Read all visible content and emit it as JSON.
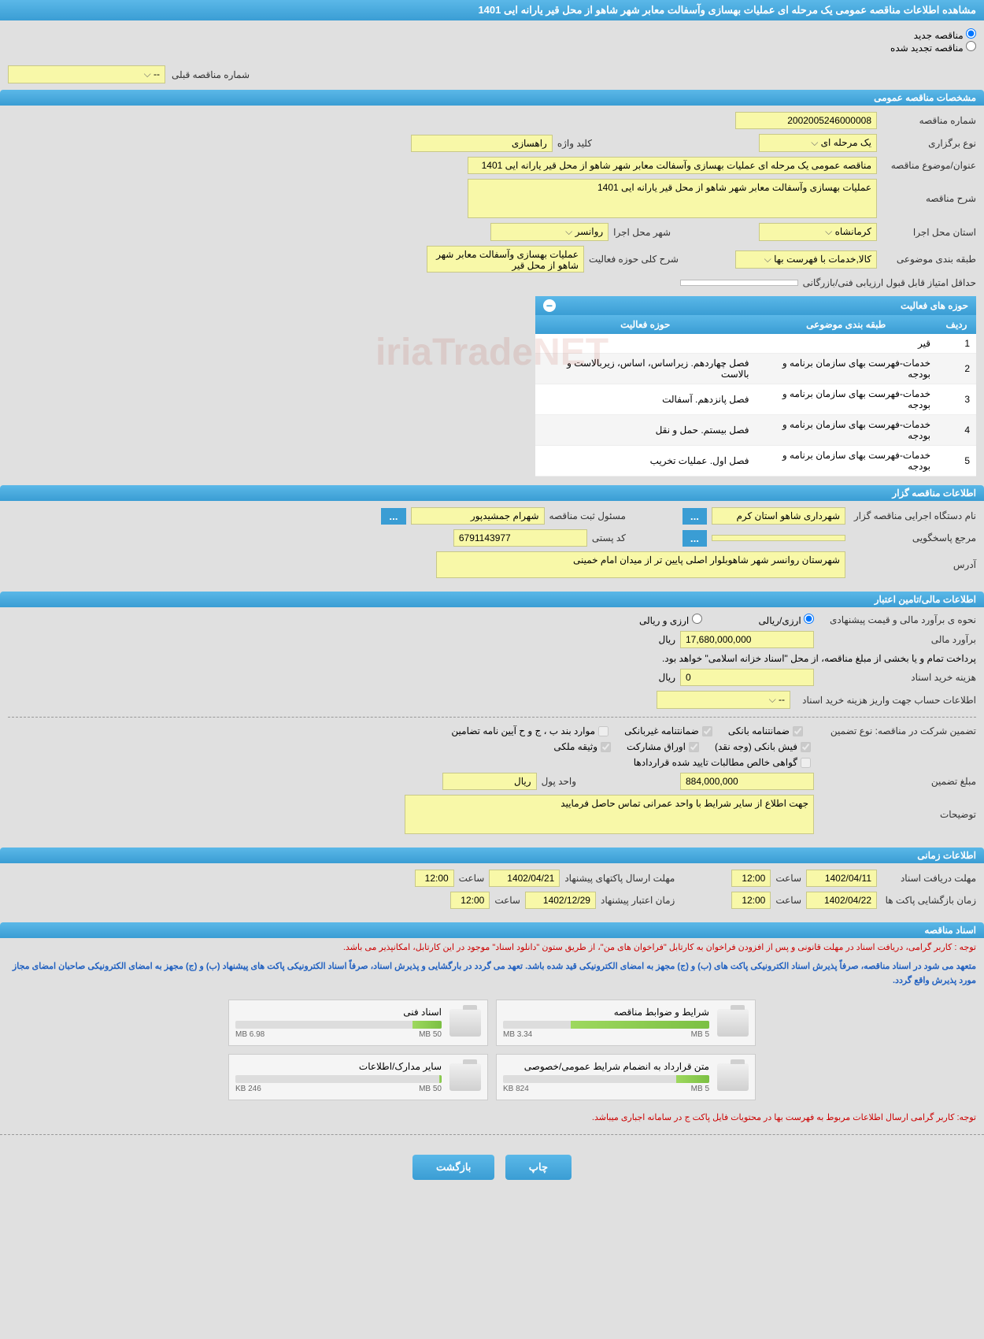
{
  "title": "مشاهده اطلاعات مناقصه عمومی یک مرحله ای عملیات بهسازی وآسفالت معابر شهر شاهو از محل قیر یارانه ایی 1401",
  "radio": {
    "new": "مناقصه جدید",
    "renewed": "مناقصه تجدید شده",
    "prev_label": "شماره مناقصه قبلی",
    "prev_value": "--"
  },
  "general": {
    "header": "مشخصات مناقصه عمومی",
    "number_label": "شماره مناقصه",
    "number": "2002005246000008",
    "type_label": "نوع برگزاری",
    "type": "یک مرحله ای",
    "keyword_label": "کلید واژه",
    "keyword": "راهسازی",
    "title_label": "عنوان/موضوع مناقصه",
    "title_val": "مناقصه عمومی یک مرحله ای عملیات بهسازی وآسفالت معابر شهر شاهو از محل قیر یارانه ایی 1401",
    "desc_label": "شرح مناقصه",
    "desc": "عملیات بهسازی وآسفالت معابر شهر شاهو از محل قیر یارانه ایی 1401",
    "province_label": "استان محل اجرا",
    "province": "کرمانشاه",
    "city_label": "شهر محل اجرا",
    "city": "روانسر",
    "category_label": "طبقه بندی موضوعی",
    "category": "کالا,خدمات با فهرست بها",
    "activity_desc_label": "شرح کلی حوزه فعالیت",
    "activity_desc": "عملیات بهسازی وآسفالت معابر شهر شاهو از محل قیر",
    "min_score_label": "حداقل امتیاز قابل قبول ارزیابی فنی/بازرگانی",
    "table_title": "حوزه های فعالیت",
    "cols": {
      "row": "ردیف",
      "cat": "طبقه بندی موضوعی",
      "act": "حوزه فعالیت"
    },
    "rows": [
      {
        "n": "1",
        "cat": "قیر",
        "act": ""
      },
      {
        "n": "2",
        "cat": "خدمات-فهرست بهای سازمان برنامه و بودجه",
        "act": "فصل چهاردهم. زیراساس، اساس، زیربالاست و بالاست"
      },
      {
        "n": "3",
        "cat": "خدمات-فهرست بهای سازمان برنامه و بودجه",
        "act": "فصل پانزدهم. آسفالت"
      },
      {
        "n": "4",
        "cat": "خدمات-فهرست بهای سازمان برنامه و بودجه",
        "act": "فصل بیستم. حمل و نقل"
      },
      {
        "n": "5",
        "cat": "خدمات-فهرست بهای سازمان برنامه و بودجه",
        "act": "فصل اول. عملیات تخریب"
      }
    ]
  },
  "org": {
    "header": "اطلاعات مناقصه گزار",
    "exec_label": "نام دستگاه اجرایی مناقصه گزار",
    "exec": "شهرداری شاهو استان کرم",
    "resp_label": "مسئول ثبت مناقصه",
    "resp": "شهرام جمشیدپور",
    "ref_label": "مرجع پاسخگویی",
    "post_label": "کد پستی",
    "post": "6791143977",
    "addr_label": "آدرس",
    "addr": "شهرستان روانسر شهر شاهوبلوار اصلی پایین تر از میدان امام خمینی"
  },
  "fin": {
    "header": "اطلاعات مالی/تامین اعتبار",
    "method_label": "نحوه ی برآورد مالی و قیمت پیشنهادی",
    "opt1": "ارزی/ریالی",
    "opt2": "ارزی و ریالی",
    "est_label": "برآورد مالی",
    "est": "17,680,000,000",
    "unit": "ریال",
    "pay_note": "پرداخت تمام و یا بخشی از مبلغ مناقصه، از محل \"اسناد خزانه اسلامی\" خواهد بود.",
    "doc_cost_label": "هزینه خرید اسناد",
    "doc_cost": "0",
    "acct_label": "اطلاعات حساب جهت واریز هزینه خرید اسناد",
    "acct": "--",
    "guar_label": "تضمین شرکت در مناقصه:   نوع تضمین",
    "g1": "ضمانتنامه بانکی",
    "g2": "ضمانتنامه غیربانکی",
    "g3": "موارد بند ب ، ج و ح آیین نامه تضامین",
    "g4": "فیش بانکی (وجه نقد)",
    "g5": "اوراق مشارکت",
    "g6": "وثیقه ملکی",
    "g7": "گواهی خالص مطالبات تایید شده قراردادها",
    "guar_amt_label": "مبلغ تضمین",
    "guar_amt": "884,000,000",
    "curr_label": "واحد پول",
    "curr": "ریال",
    "notes_label": "توضیحات",
    "notes": "جهت اطلاع از سایر شرایط با واحد عمرانی تماس حاصل فرمایید"
  },
  "time": {
    "header": "اطلاعات زمانی",
    "recv_label": "مهلت دریافت اسناد",
    "recv_date": "1402/04/11",
    "recv_time_label": "ساعت",
    "recv_time": "12:00",
    "send_label": "مهلت ارسال پاکتهای پیشنهاد",
    "send_date": "1402/04/21",
    "send_time": "12:00",
    "open_label": "زمان بازگشایی پاکت ها",
    "open_date": "1402/04/22",
    "open_time": "12:00",
    "valid_label": "زمان اعتبار پیشنهاد",
    "valid_date": "1402/12/29",
    "valid_time": "12:00"
  },
  "docs": {
    "header": "اسناد مناقصه",
    "note1": "توجه : کاربر گرامی، دریافت اسناد در مهلت قانونی و پس از افزودن فراخوان به کارتابل \"فراخوان های من\"، از طریق ستون \"دانلود اسناد\" موجود در این کارتابل، امکانپذیر می باشد.",
    "note2": "متعهد می شود در اسناد مناقصه، صرفاً پذیرش اسناد الکترونیکی پاکت های (ب) و (ج) مجهز به امضای الکترونیکی قید شده باشد. تعهد می گردد در بارگشایی و پذیرش اسناد، صرفاً اسناد الکترونیکی پاکت های پیشنهاد (ب) و (ج) مجهز به امضای الکترونیکی صاحبان امضای مجاز مورد پذیرش واقع گردد.",
    "files": [
      {
        "title": "شرایط و ضوابط مناقصه",
        "used": "3.34 MB",
        "total": "5 MB",
        "pct": 67
      },
      {
        "title": "اسناد فنی",
        "used": "6.98 MB",
        "total": "50 MB",
        "pct": 14
      },
      {
        "title": "متن قرارداد به انضمام شرایط عمومی/خصوصی",
        "used": "824 KB",
        "total": "5 MB",
        "pct": 16
      },
      {
        "title": "سایر مدارک/اطلاعات",
        "used": "246 KB",
        "total": "50 MB",
        "pct": 1
      }
    ],
    "note3": "توجه: کاربر گرامی ارسال اطلاعات مربوط به فهرست بها در محتویات فایل پاکت ج در سامانه اجباری میباشد."
  },
  "buttons": {
    "print": "چاپ",
    "back": "بازگشت"
  },
  "watermark": "iriaTradeNET"
}
